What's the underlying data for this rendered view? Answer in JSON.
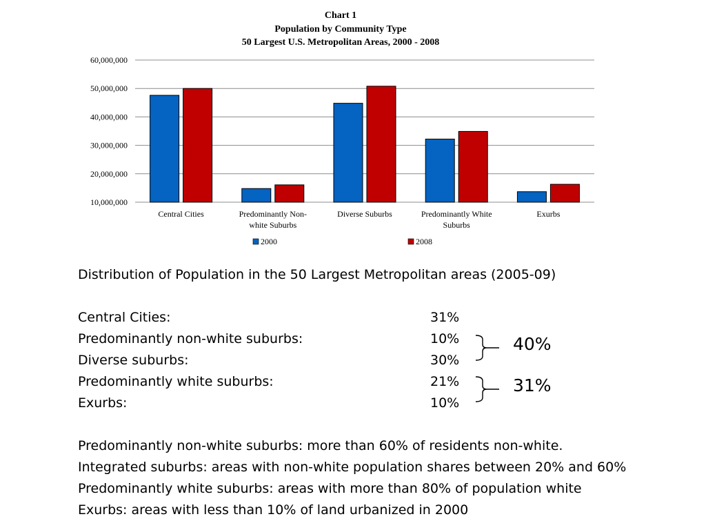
{
  "chart_data": {
    "type": "bar",
    "title_lines": [
      "Chart 1",
      "Population by Community Type",
      "50 Largest U.S. Metropolitan Areas, 2000 - 2008"
    ],
    "categories": [
      [
        "Central Cities"
      ],
      [
        "Predominantly Non-",
        "white Suburbs"
      ],
      [
        "Diverse Suburbs"
      ],
      [
        "Predominantly White",
        "Suburbs"
      ],
      [
        "Exurbs"
      ]
    ],
    "series": [
      {
        "name": "2000",
        "color": "#0563C1",
        "values": [
          47600000,
          14800000,
          44800000,
          32200000,
          13700000
        ]
      },
      {
        "name": "2008",
        "color": "#C00000",
        "values": [
          50000000,
          16100000,
          50800000,
          34900000,
          16300000
        ]
      }
    ],
    "ylim": [
      10000000,
      60000000
    ],
    "yticks": [
      "60,000,000",
      "50,000,000",
      "40,000,000",
      "30,000,000",
      "20,000,000",
      "10,000,000"
    ],
    "ytick_values": [
      60000000,
      50000000,
      40000000,
      30000000,
      20000000,
      10000000
    ],
    "grid": true,
    "legend_position": "bottom"
  },
  "distribution": {
    "heading": "Distribution of Population in the 50 Largest Metropolitan areas (2005-09)",
    "rows": [
      {
        "label": "Central Cities:",
        "value": "31%"
      },
      {
        "label": "Predominantly non-white suburbs:",
        "value": "10%"
      },
      {
        "label": "Diverse suburbs:",
        "value": "30%"
      },
      {
        "label": "Predominantly white suburbs:",
        "value": "21%"
      },
      {
        "label": "Exurbs:",
        "value": "10%"
      }
    ],
    "group_totals": [
      "40%",
      "31%"
    ]
  },
  "definitions": [
    "Predominantly non-white suburbs: more than 60% of residents non-white.",
    "Integrated suburbs: areas with non-white population shares between 20% and 60%",
    "Predominantly white suburbs: areas with more than 80% of population white",
    "Exurbs: areas with less than 10% of land urbanized in 2000"
  ]
}
